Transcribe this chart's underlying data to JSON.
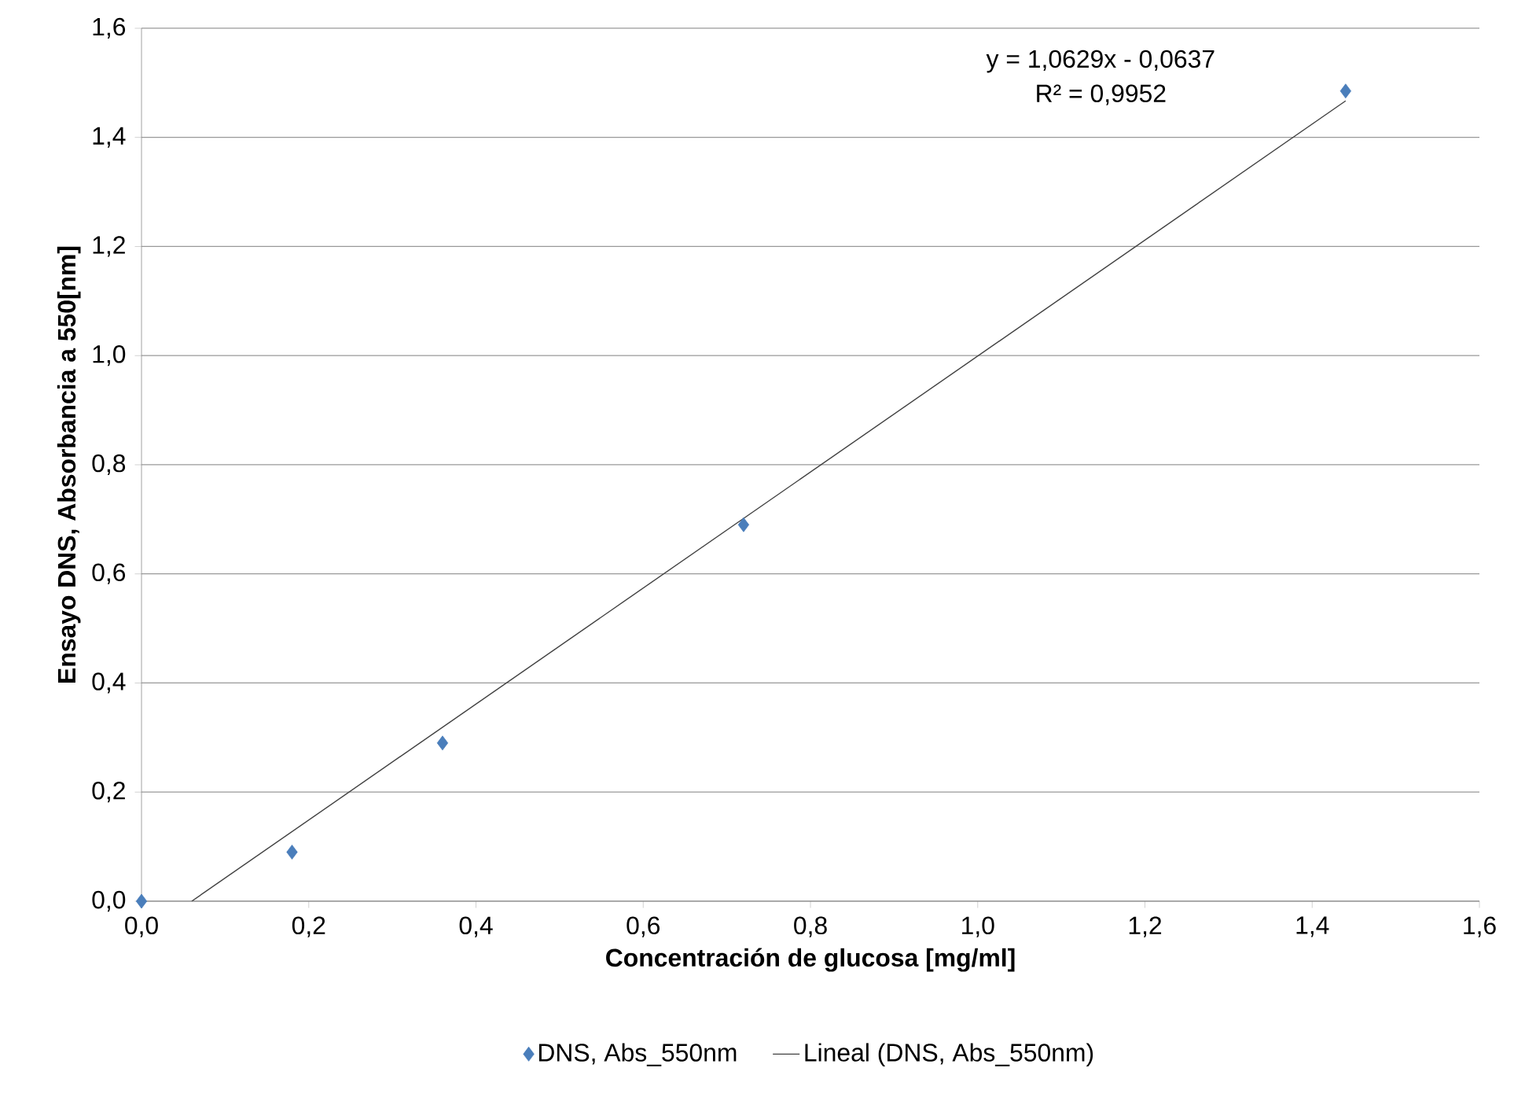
{
  "chart_data": {
    "type": "scatter",
    "xlabel": "Concentración de glucosa [mg/ml]",
    "ylabel": "Ensayo DNS, Absorbancia a 550[nm]",
    "annotations": [
      "y = 1,0629x - 0,0637",
      "R² = 0,9952"
    ],
    "xlim": [
      0,
      1.6
    ],
    "xticks": [
      {
        "value": 0,
        "label": "0,0"
      },
      {
        "value": 0.2,
        "label": "0,2"
      },
      {
        "value": 0.4,
        "label": "0,4"
      },
      {
        "value": 0.6,
        "label": "0,6"
      },
      {
        "value": 0.8,
        "label": "0,8"
      },
      {
        "value": 1.0,
        "label": "1,0"
      },
      {
        "value": 1.2,
        "label": "1,2"
      },
      {
        "value": 1.4,
        "label": "1,4"
      },
      {
        "value": 1.6,
        "label": "1,6"
      }
    ],
    "ylim": [
      0,
      1.6
    ],
    "yticks": [
      {
        "value": 0,
        "label": "0,0"
      },
      {
        "value": 0.2,
        "label": "0,2"
      },
      {
        "value": 0.4,
        "label": "0,4"
      },
      {
        "value": 0.6,
        "label": "0,6"
      },
      {
        "value": 0.8,
        "label": "0,8"
      },
      {
        "value": 1.0,
        "label": "1,0"
      },
      {
        "value": 1.2,
        "label": "1,2"
      },
      {
        "value": 1.4,
        "label": "1,4"
      },
      {
        "value": 1.6,
        "label": "1,6"
      }
    ],
    "grid": "y",
    "legend": "bottom",
    "series": [
      {
        "name": "DNS, Abs_550nm",
        "marker": "diamond",
        "color": "#4a7ebb",
        "x": [
          0,
          0.18,
          0.36,
          0.72,
          1.44
        ],
        "values": [
          0,
          0.09,
          0.29,
          0.69,
          1.485
        ]
      },
      {
        "name": "Lineal (DNS, Abs_550nm)",
        "type": "line",
        "marker": "none",
        "line_style": "solid",
        "color": "#404040",
        "x": [
          0.06,
          1.44
        ],
        "values": [
          0,
          1.467
        ]
      }
    ]
  }
}
